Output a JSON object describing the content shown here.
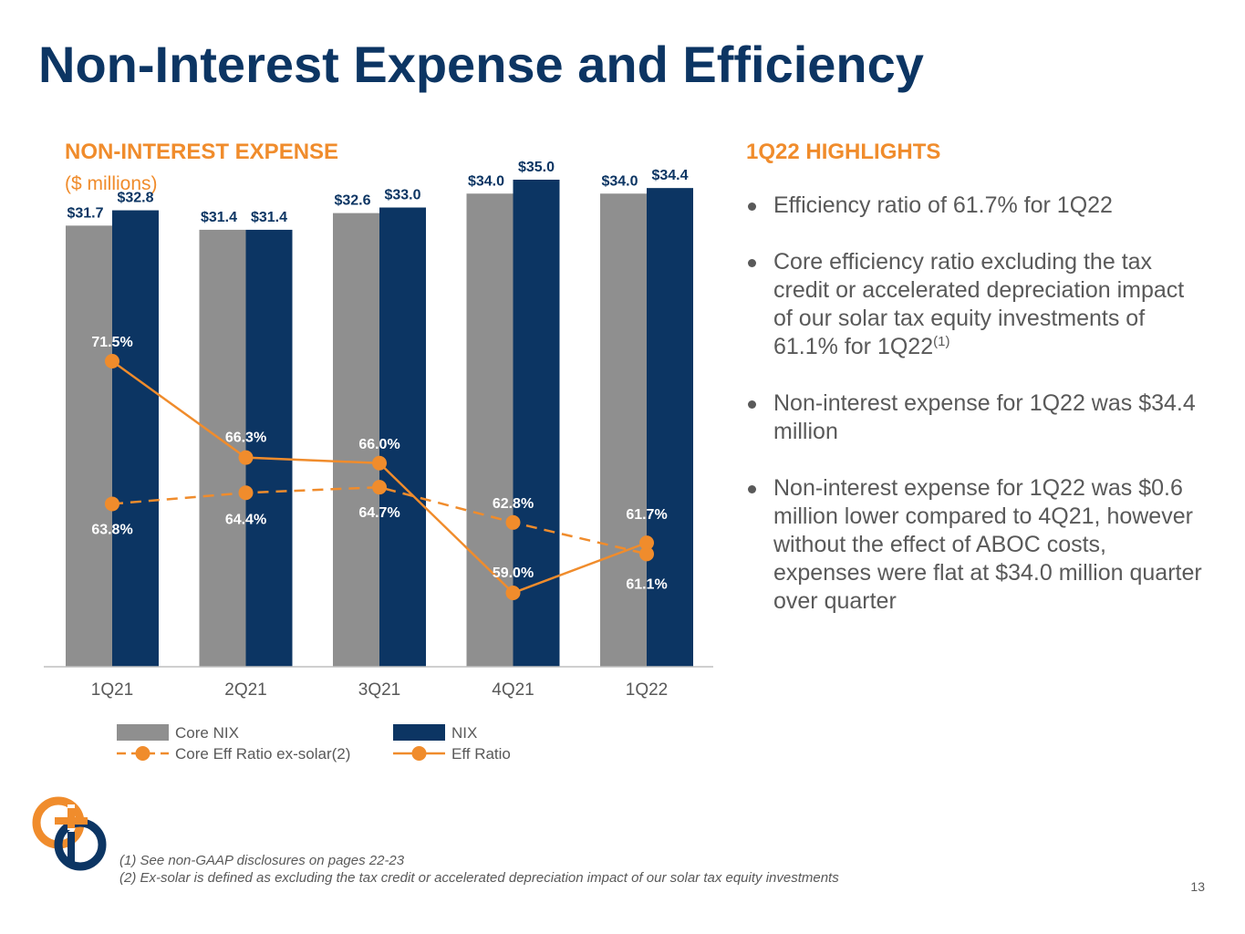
{
  "page": {
    "title": "Non-Interest Expense and Efficiency",
    "page_number": "13"
  },
  "left_panel": {
    "heading": "NON-INTEREST EXPENSE",
    "subheading": "($ millions)"
  },
  "right_panel": {
    "heading": "1Q22 HIGHLIGHTS",
    "bullets": [
      {
        "text": "Efficiency ratio of 61.7% for 1Q22",
        "sup": ""
      },
      {
        "text": "Core efficiency ratio excluding the tax credit or accelerated depreciation impact of our solar tax equity investments of 61.1% for 1Q22",
        "sup": "(1)"
      },
      {
        "text": "Non-interest expense for 1Q22 was $34.4 million",
        "sup": ""
      },
      {
        "text": "Non-interest expense for 1Q22 was $0.6 million lower compared to 4Q21, however without the effect of ABOC costs, expenses were flat at $34.0 million quarter over quarter",
        "sup": ""
      }
    ]
  },
  "footnotes": [
    "(1) See non-GAAP disclosures on pages 22-23",
    "(2) Ex-solar is defined as excluding the tax credit or accelerated depreciation impact of our solar tax equity investments"
  ],
  "chart_data": {
    "type": "bar",
    "categories": [
      "1Q21",
      "2Q21",
      "3Q21",
      "4Q21",
      "1Q22"
    ],
    "bar_axis_range": [
      0,
      40
    ],
    "ratio_axis_range": [
      45,
      80
    ],
    "grid": false,
    "legend_position": "bottom",
    "series": [
      {
        "name": "Core NIX",
        "kind": "bar",
        "color": "#8f8f8f",
        "values": [
          31.7,
          31.4,
          32.6,
          34.0,
          34.0
        ],
        "labels": [
          "$31.7",
          "$31.4",
          "$32.6",
          "$34.0",
          "$34.0"
        ]
      },
      {
        "name": "NIX",
        "kind": "bar",
        "color": "#0c3563",
        "values": [
          32.8,
          31.4,
          33.0,
          35.0,
          34.4
        ],
        "labels": [
          "$32.8",
          "$31.4",
          "$33.0",
          "$35.0",
          "$34.4"
        ]
      },
      {
        "name": "Core Eff Ratio ex-solar(2)",
        "kind": "line",
        "dashed": true,
        "color": "#f08c2c",
        "values": [
          63.8,
          64.4,
          64.7,
          62.8,
          61.1
        ],
        "labels": [
          "63.8%",
          "64.4%",
          "64.7%",
          "62.8%",
          "61.1%"
        ]
      },
      {
        "name": "Eff Ratio",
        "kind": "line",
        "dashed": false,
        "color": "#f08c2c",
        "values": [
          71.5,
          66.3,
          66.0,
          59.0,
          61.7
        ],
        "labels": [
          "71.5%",
          "66.3%",
          "66.0%",
          "59.0%",
          "61.7%"
        ]
      }
    ]
  }
}
